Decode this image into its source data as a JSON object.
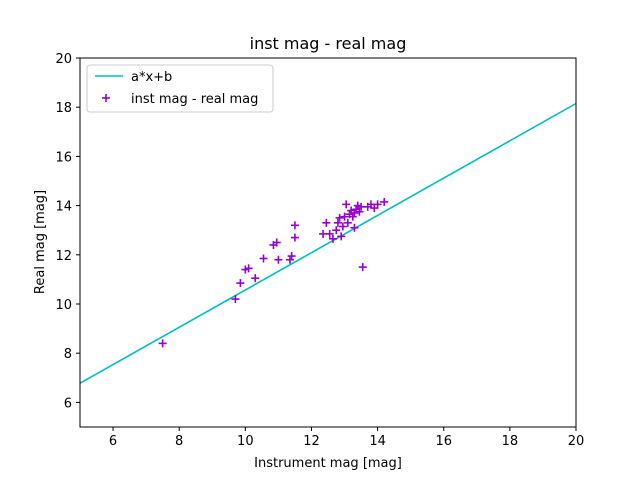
{
  "chart_data": {
    "type": "scatter",
    "title": "inst mag - real mag",
    "xlabel": "Instrument mag [mag]",
    "ylabel": "Real mag [mag]",
    "xlim": [
      5,
      20
    ],
    "ylim": [
      5,
      20
    ],
    "xticks": [
      6,
      8,
      10,
      12,
      14,
      16,
      18,
      20
    ],
    "yticks": [
      6,
      8,
      10,
      12,
      14,
      16,
      18,
      20
    ],
    "grid": false,
    "legend_position": "top-left",
    "series": [
      {
        "name": "a*x+b",
        "kind": "line",
        "color": "#00bfbf",
        "x": [
          5,
          20
        ],
        "y": [
          6.78,
          18.15
        ]
      },
      {
        "name": "inst mag - real mag",
        "kind": "scatter",
        "marker": "plus",
        "color": "#9400d3",
        "points": [
          [
            7.5,
            8.4
          ],
          [
            9.7,
            10.2
          ],
          [
            9.85,
            10.85
          ],
          [
            10.0,
            11.4
          ],
          [
            10.1,
            11.45
          ],
          [
            10.3,
            11.05
          ],
          [
            10.55,
            11.85
          ],
          [
            10.85,
            12.4
          ],
          [
            10.95,
            12.5
          ],
          [
            11.0,
            11.8
          ],
          [
            11.35,
            11.8
          ],
          [
            11.4,
            11.95
          ],
          [
            11.5,
            13.2
          ],
          [
            11.5,
            12.7
          ],
          [
            12.35,
            12.85
          ],
          [
            12.45,
            13.3
          ],
          [
            12.55,
            12.85
          ],
          [
            12.65,
            12.65
          ],
          [
            12.75,
            13.0
          ],
          [
            12.8,
            13.3
          ],
          [
            12.85,
            13.5
          ],
          [
            12.9,
            12.75
          ],
          [
            12.95,
            13.15
          ],
          [
            13.0,
            13.55
          ],
          [
            13.05,
            14.05
          ],
          [
            13.1,
            13.3
          ],
          [
            13.15,
            13.65
          ],
          [
            13.2,
            13.8
          ],
          [
            13.25,
            13.55
          ],
          [
            13.3,
            13.1
          ],
          [
            13.3,
            13.7
          ],
          [
            13.35,
            13.85
          ],
          [
            13.4,
            14.0
          ],
          [
            13.45,
            13.75
          ],
          [
            13.5,
            13.95
          ],
          [
            13.55,
            11.5
          ],
          [
            13.7,
            13.95
          ],
          [
            13.8,
            14.05
          ],
          [
            13.9,
            13.9
          ],
          [
            14.0,
            14.05
          ],
          [
            14.2,
            14.15
          ]
        ]
      }
    ]
  }
}
